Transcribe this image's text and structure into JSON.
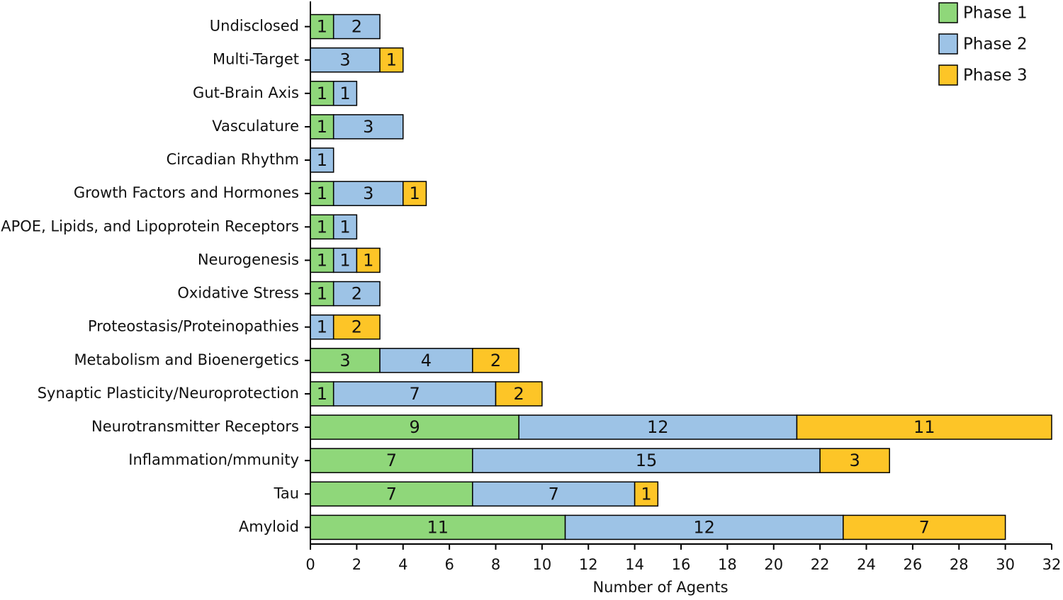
{
  "chart_data": {
    "type": "stacked-bar-horizontal",
    "categories": [
      "Undisclosed",
      "Multi-Target",
      "Gut-Brain Axis",
      "Vasculature",
      "Circadian Rhythm",
      "Growth Factors and Hormones",
      "APOE, Lipids, and Lipoprotein Receptors",
      "Neurogenesis",
      "Oxidative Stress",
      "Proteostasis/Proteinopathies",
      "Metabolism and Bioenergetics",
      "Synaptic Plasticity/Neuroprotection",
      "Neurotransmitter Receptors",
      "Inflammation/mmunity",
      "Tau",
      "Amyloid"
    ],
    "series": [
      {
        "name": "Phase 1",
        "color": "#8fd77a",
        "values": [
          1,
          null,
          1,
          1,
          null,
          1,
          1,
          1,
          1,
          null,
          3,
          1,
          9,
          7,
          7,
          11
        ]
      },
      {
        "name": "Phase 2",
        "color": "#9dc3e6",
        "values": [
          2,
          3,
          1,
          3,
          1,
          3,
          1,
          1,
          2,
          1,
          4,
          7,
          12,
          15,
          7,
          12
        ]
      },
      {
        "name": "Phase 3",
        "color": "#fdc527",
        "values": [
          null,
          1,
          null,
          null,
          null,
          1,
          null,
          1,
          null,
          2,
          2,
          2,
          11,
          3,
          1,
          7
        ]
      }
    ],
    "x_label": "Number of Agents",
    "xlim": [
      0,
      32
    ],
    "xticks": [
      0,
      2,
      4,
      6,
      8,
      10,
      12,
      14,
      16,
      18,
      20,
      22,
      24,
      26,
      28,
      30,
      32
    ],
    "legend": "top-right"
  }
}
